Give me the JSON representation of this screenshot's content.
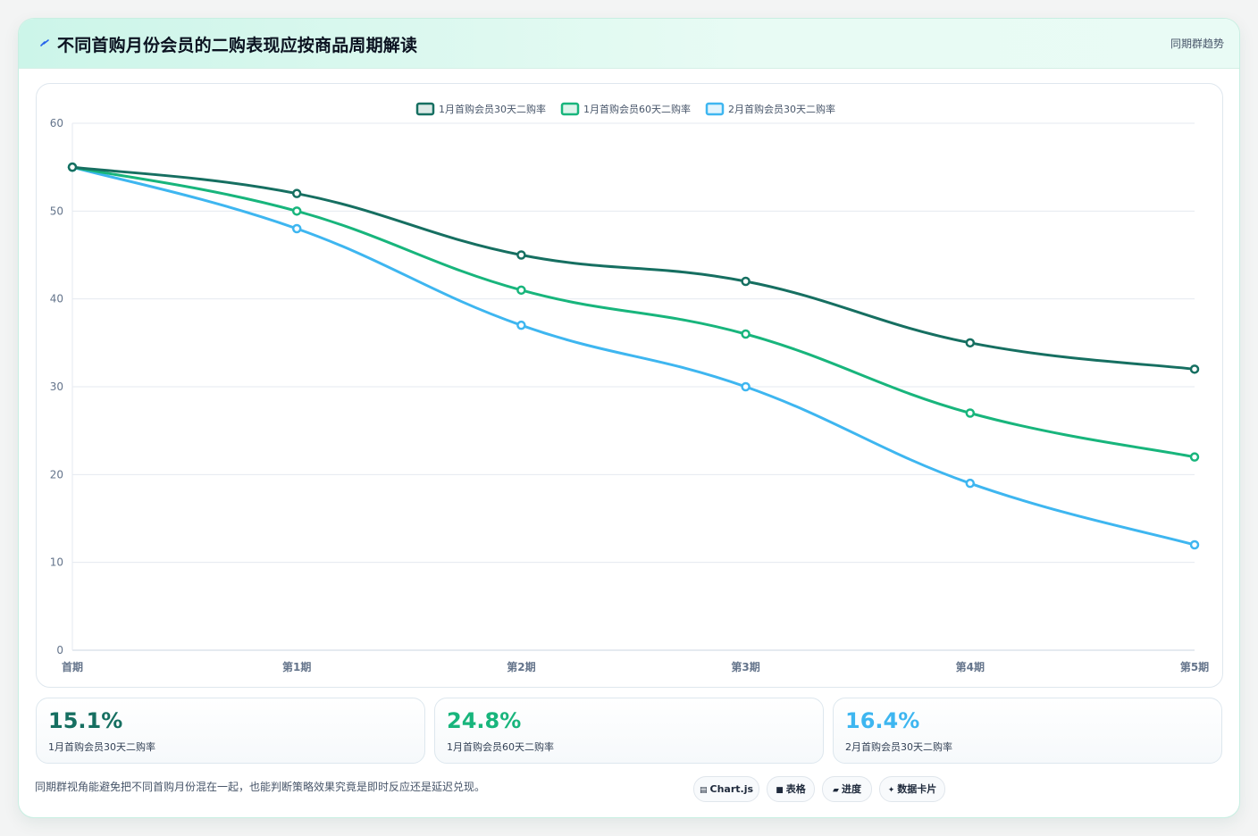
{
  "header": {
    "title": "不同首购月份会员的二购表现应按商品周期解读",
    "tag": "同期群趋势"
  },
  "colors": {
    "series_1": "#166f61",
    "series_2": "#18b57c",
    "series_3": "#3eb6f0"
  },
  "chart_data": {
    "type": "line",
    "title": "",
    "xlabel": "",
    "ylabel": "",
    "categories": [
      "首期",
      "第1期",
      "第2期",
      "第3期",
      "第4期",
      "第5期"
    ],
    "ylim": [
      0,
      60
    ],
    "yticks": [
      0,
      10,
      20,
      30,
      40,
      50,
      60
    ],
    "grid": true,
    "legend_position": "top-center",
    "series": [
      {
        "name": "1月首购会员30天二购率",
        "values": [
          55,
          52,
          45,
          42,
          35,
          32
        ]
      },
      {
        "name": "1月首购会员60天二购率",
        "values": [
          55,
          50,
          41,
          36,
          27,
          22
        ]
      },
      {
        "name": "2月首购会员30天二购率",
        "values": [
          55,
          48,
          37,
          30,
          19,
          12
        ]
      }
    ]
  },
  "stats": [
    {
      "value": "15.1%",
      "label": "1月首购会员30天二购率"
    },
    {
      "value": "24.8%",
      "label": "1月首购会员60天二购率"
    },
    {
      "value": "16.4%",
      "label": "2月首购会员30天二购率"
    }
  ],
  "footer": {
    "note": "同期群视角能避免把不同首购月份混在一起，也能判断策略效果究竟是即时反应还是延迟兑现。",
    "pills": [
      {
        "icon": "chart-icon",
        "glyph": "▤",
        "label": "Chart.js"
      },
      {
        "icon": "table-icon",
        "glyph": "■",
        "label": "表格"
      },
      {
        "icon": "progress-icon",
        "glyph": "▰",
        "label": "进度"
      },
      {
        "icon": "card-icon",
        "glyph": "✦",
        "label": "数据卡片"
      }
    ]
  }
}
